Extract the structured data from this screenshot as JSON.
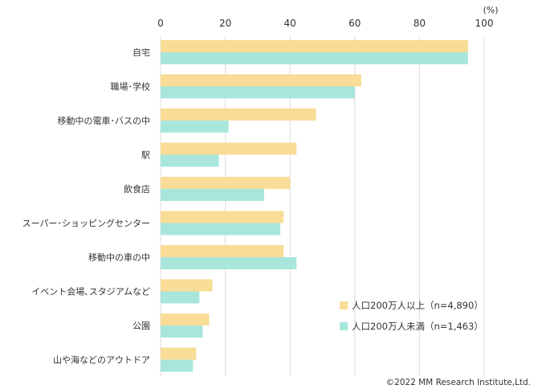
{
  "chart_data": {
    "type": "bar",
    "orientation": "horizontal",
    "unit": "(%)",
    "xlim": [
      0,
      100
    ],
    "ticks": [
      "0",
      "20",
      "40",
      "60",
      "80",
      "100"
    ],
    "grid": true,
    "categories": [
      "自宅",
      "職場･学校",
      "移動中の電車･バスの中",
      "駅",
      "飲食店",
      "スーパー･ショッピングセンター",
      "移動中の車の中",
      "イベント会場､スタジアムなど",
      "公園",
      "山や海などのアウトドア"
    ],
    "series": [
      {
        "name": "人口200万人以上（n=4,890）",
        "color": "#f9dc96",
        "values": [
          95,
          62,
          48,
          42,
          40,
          38,
          38,
          16,
          15,
          11
        ]
      },
      {
        "name": "人口200万人未満（n=1,463）",
        "color": "#a8e6dc",
        "values": [
          95,
          60,
          21,
          18,
          32,
          37,
          42,
          12,
          13,
          10
        ]
      }
    ],
    "legend_position": "bottom-right"
  },
  "credit": "©2022 MM Research Institute,Ltd."
}
